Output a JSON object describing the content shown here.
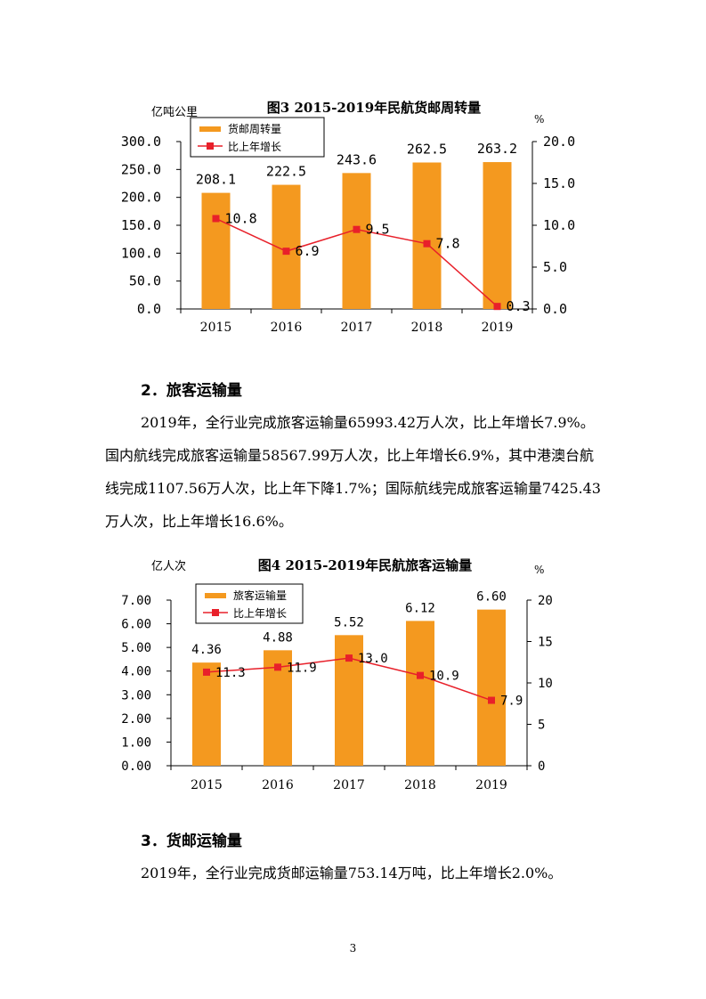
{
  "chart_data": [
    {
      "type": "bar",
      "title": "图3 2015-2019年民航货邮周转量",
      "ylabel": "亿吨公里",
      "y2label": "%",
      "categories": [
        "2015",
        "2016",
        "2017",
        "2018",
        "2019"
      ],
      "ylim": [
        0,
        300
      ],
      "y2lim": [
        0,
        20
      ],
      "yticks": [
        "0.0",
        "50.0",
        "100.0",
        "150.0",
        "200.0",
        "250.0",
        "300.0"
      ],
      "y2ticks": [
        "0.0",
        "5.0",
        "10.0",
        "15.0",
        "20.0"
      ],
      "series": [
        {
          "name": "货邮周转量",
          "type": "bar",
          "axis": "left",
          "values": [
            208.1,
            222.5,
            243.6,
            262.5,
            263.2
          ],
          "labels": [
            "208.1",
            "222.5",
            "243.6",
            "262.5",
            "263.2"
          ]
        },
        {
          "name": "比上年增长",
          "type": "line",
          "axis": "right",
          "values": [
            10.8,
            6.9,
            9.5,
            7.8,
            0.3
          ],
          "labels": [
            "10.8",
            "6.9",
            "9.5",
            "7.8",
            "0.3"
          ]
        }
      ],
      "legend": "top-left",
      "grid": false
    },
    {
      "type": "bar",
      "title": "图4 2015-2019年民航旅客运输量",
      "ylabel": "亿人次",
      "y2label": "%",
      "categories": [
        "2015",
        "2016",
        "2017",
        "2018",
        "2019"
      ],
      "ylim": [
        0,
        7
      ],
      "y2lim": [
        0,
        20
      ],
      "yticks": [
        "0.00",
        "1.00",
        "2.00",
        "3.00",
        "4.00",
        "5.00",
        "6.00",
        "7.00"
      ],
      "y2ticks": [
        "0",
        "5",
        "10",
        "15",
        "20"
      ],
      "series": [
        {
          "name": "旅客运输量",
          "type": "bar",
          "axis": "left",
          "values": [
            4.36,
            4.88,
            5.52,
            6.12,
            6.6
          ],
          "labels": [
            "4.36",
            "4.88",
            "5.52",
            "6.12",
            "6.60"
          ]
        },
        {
          "name": "比上年增长",
          "type": "line",
          "axis": "right",
          "values": [
            11.3,
            11.9,
            13.0,
            10.9,
            7.9
          ],
          "labels": [
            "11.3",
            "11.9",
            "13.0",
            "10.9",
            "7.9"
          ]
        }
      ],
      "legend": "top-left",
      "grid": false
    }
  ],
  "colors": {
    "bar": "#f4991f",
    "line": "#e8202a"
  },
  "section2": {
    "heading": "2．旅客运输量",
    "paragraph": "2019年，全行业完成旅客运输量65993.42万人次，比上年增长7.9%。国内航线完成旅客运输量58567.99万人次，比上年增长6.9%，其中港澳台航线完成1107.56万人次，比上年下降1.7%；国际航线完成旅客运输量7425.43万人次，比上年增长16.6%。"
  },
  "section3": {
    "heading": "3．货邮运输量",
    "paragraph": "2019年，全行业完成货邮运输量753.14万吨，比上年增长2.0%。"
  },
  "page_number": "3"
}
